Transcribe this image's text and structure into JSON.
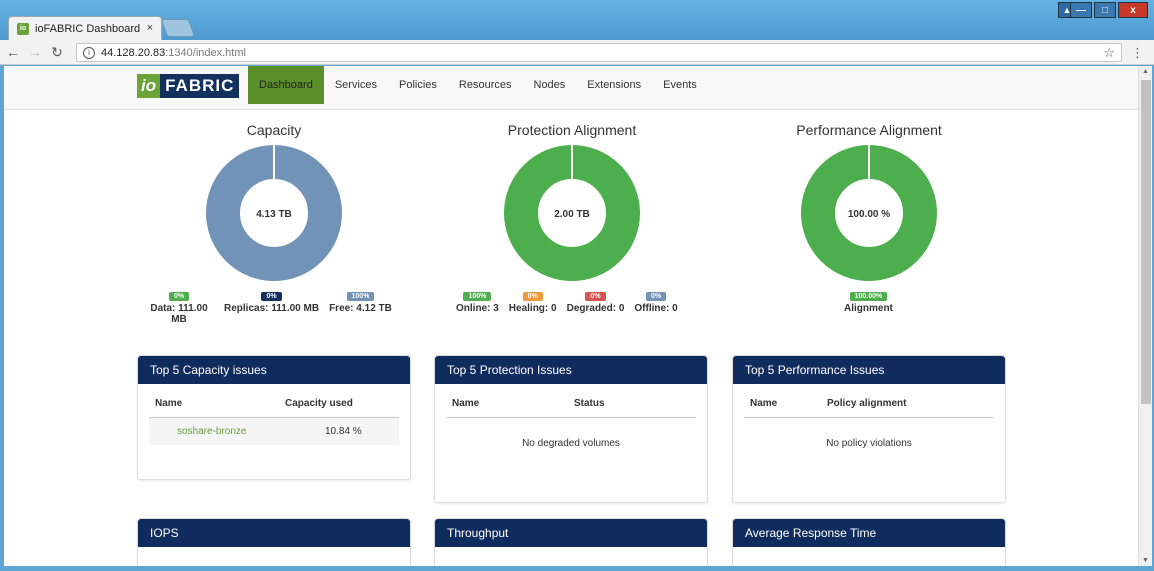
{
  "browser": {
    "tab_title": "ioFABRIC Dashboard",
    "tab_close": "×",
    "url_host": "44.128.20.83",
    "url_path": ":1340/index.html",
    "window_close": "x"
  },
  "app": {
    "logo_io": "io",
    "logo_fabric": "FABRIC",
    "nav": [
      "Dashboard",
      "Services",
      "Policies",
      "Resources",
      "Nodes",
      "Extensions",
      "Events"
    ],
    "active_nav": "Dashboard"
  },
  "donuts": {
    "capacity": {
      "title": "Capacity",
      "center": "4.13 TB",
      "color": "#7193b7",
      "legend": [
        {
          "pill": "0%",
          "color": "#4cae4c",
          "label": "Data: 111.00 MB"
        },
        {
          "pill": "0%",
          "color": "#13315f",
          "label": "Replicas: 111.00 MB"
        },
        {
          "pill": "100%",
          "color": "#7193b7",
          "label": "Free: 4.12 TB"
        }
      ]
    },
    "protection": {
      "title": "Protection Alignment",
      "center": "2.00 TB",
      "color": "#4cae4c",
      "legend": [
        {
          "pill": "100%",
          "color": "#4cae4c",
          "label": "Online: 3"
        },
        {
          "pill": "0%",
          "color": "#ec9a3b",
          "label": "Healing: 0"
        },
        {
          "pill": "0%",
          "color": "#d9534f",
          "label": "Degraded: 0"
        },
        {
          "pill": "0%",
          "color": "#7193b7",
          "label": "Offline: 0"
        }
      ]
    },
    "performance": {
      "title": "Performance Alignment",
      "center": "100.00 %",
      "color": "#4cae4c",
      "legend": [
        {
          "pill": "100.00%",
          "color": "#4cae4c",
          "label": "Alignment"
        }
      ]
    }
  },
  "panels": {
    "capacity_issues": {
      "title": "Top 5 Capacity issues",
      "col1": "Name",
      "col2": "Capacity used",
      "rows": [
        {
          "name": "soshare-bronze",
          "value": "10.84 %"
        }
      ]
    },
    "protection_issues": {
      "title": "Top 5 Protection Issues",
      "col1": "Name",
      "col2": "Status",
      "empty": "No degraded volumes"
    },
    "performance_issues": {
      "title": "Top 5 Performance Issues",
      "col1": "Name",
      "col2": "Policy alignment",
      "empty": "No policy violations"
    },
    "iops": {
      "title": "IOPS"
    },
    "throughput": {
      "title": "Throughput"
    },
    "response": {
      "title": "Average Response Time"
    }
  }
}
